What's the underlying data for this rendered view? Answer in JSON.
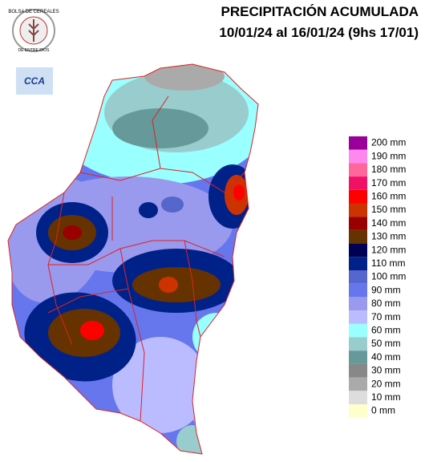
{
  "header": {
    "title": "PRECIPITACIÓN ACUMULADA",
    "subtitle": "10/01/24 al 16/01/24 (9hs 17/01)"
  },
  "logos": {
    "bolsa": "BOLSA DE CEREALES",
    "bolsa_bottom": "DE ENTRE RIOS",
    "cca": "CCA"
  },
  "legend": [
    {
      "label": "200 mm",
      "color": "#990099"
    },
    {
      "label": "190 mm",
      "color": "#ff88ee"
    },
    {
      "label": "180 mm",
      "color": "#ff6699"
    },
    {
      "label": "170 mm",
      "color": "#ee1166"
    },
    {
      "label": "160 mm",
      "color": "#ff0000"
    },
    {
      "label": "150 mm",
      "color": "#cc3300"
    },
    {
      "label": "140 mm",
      "color": "#990000"
    },
    {
      "label": "130 mm",
      "color": "#663300"
    },
    {
      "label": "120 mm",
      "color": "#000055"
    },
    {
      "label": "110 mm",
      "color": "#002288"
    },
    {
      "label": "100 mm",
      "color": "#5566cc"
    },
    {
      "label": "90 mm",
      "color": "#6677ee"
    },
    {
      "label": "80 mm",
      "color": "#9999ee"
    },
    {
      "label": "70 mm",
      "color": "#bbbbff"
    },
    {
      "label": "60 mm",
      "color": "#99ffff"
    },
    {
      "label": "50 mm",
      "color": "#99cccc"
    },
    {
      "label": "40 mm",
      "color": "#669999"
    },
    {
      "label": "30 mm",
      "color": "#888888"
    },
    {
      "label": "20 mm",
      "color": "#aaaaaa"
    },
    {
      "label": "10 mm",
      "color": "#dddddd"
    },
    {
      "label": "0 mm",
      "color": "#ffffcc"
    }
  ]
}
